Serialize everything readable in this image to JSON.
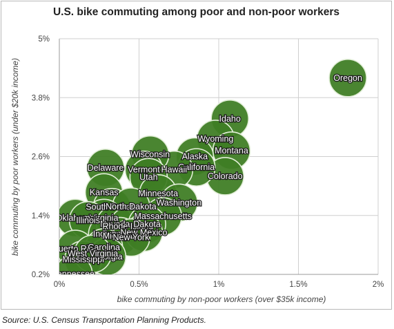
{
  "chart_data": {
    "type": "scatter",
    "title": "U.S. bike commuting among poor and non-poor workers",
    "xlabel": "bike commuting by non-poor workers (over $35k income)",
    "ylabel": "bike commuting by poor workers (under $20k income)",
    "xlim": [
      0,
      2
    ],
    "ylim": [
      0.2,
      5
    ],
    "xticks": [
      {
        "value": 0,
        "label": "0%"
      },
      {
        "value": 0.5,
        "label": "0.5%"
      },
      {
        "value": 1,
        "label": "1%"
      },
      {
        "value": 1.5,
        "label": "1.5%"
      },
      {
        "value": 2,
        "label": "2%"
      }
    ],
    "yticks": [
      {
        "value": 0.2,
        "label": "0.2%"
      },
      {
        "value": 1.4,
        "label": "1.4%"
      },
      {
        "value": 2.6,
        "label": "2.6%"
      },
      {
        "value": 3.8,
        "label": "3.8%"
      },
      {
        "value": 5,
        "label": "5%"
      }
    ],
    "grid": true,
    "marker_color": "#3f7d24",
    "points": [
      {
        "label": "Oregon",
        "x": 1.81,
        "y": 4.2
      },
      {
        "label": "Idaho",
        "x": 1.07,
        "y": 3.37
      },
      {
        "label": "Wyoming",
        "x": 0.98,
        "y": 2.96
      },
      {
        "label": "Montana",
        "x": 1.08,
        "y": 2.72
      },
      {
        "label": "Colorado",
        "x": 1.04,
        "y": 2.2
      },
      {
        "label": "Alaska",
        "x": 0.85,
        "y": 2.6
      },
      {
        "label": "California",
        "x": 0.86,
        "y": 2.38
      },
      {
        "label": "Hawaii",
        "x": 0.72,
        "y": 2.33
      },
      {
        "label": "Wisconsin",
        "x": 0.57,
        "y": 2.64
      },
      {
        "label": "Vermont",
        "x": 0.53,
        "y": 2.33
      },
      {
        "label": "Utah",
        "x": 0.56,
        "y": 2.18
      },
      {
        "label": "Minnesota",
        "x": 0.62,
        "y": 1.85
      },
      {
        "label": "Washington",
        "x": 0.75,
        "y": 1.66
      },
      {
        "label": "Massachusetts",
        "x": 0.65,
        "y": 1.38
      },
      {
        "label": "Delaware",
        "x": 0.29,
        "y": 2.37
      },
      {
        "label": "Kansas",
        "x": 0.28,
        "y": 1.87
      },
      {
        "label": "South Dakota",
        "x": 0.33,
        "y": 1.57
      },
      {
        "label": "North Dakota",
        "x": 0.45,
        "y": 1.58
      },
      {
        "label": "Virginia",
        "x": 0.28,
        "y": 1.35
      },
      {
        "label": "Oklahoma",
        "x": 0.1,
        "y": 1.35
      },
      {
        "label": "Illinois",
        "x": 0.18,
        "y": 1.3
      },
      {
        "label": "Nevada",
        "x": 0.35,
        "y": 1.22
      },
      {
        "label": "Rhode Island",
        "x": 0.43,
        "y": 1.18
      },
      {
        "label": "Dakota",
        "x": 0.55,
        "y": 1.22
      },
      {
        "label": "Indiana",
        "x": 0.3,
        "y": 1.02
      },
      {
        "label": "Michigan",
        "x": 0.38,
        "y": 0.98
      },
      {
        "label": "New Mexico",
        "x": 0.53,
        "y": 1.05
      },
      {
        "label": "New York",
        "x": 0.45,
        "y": 0.95
      },
      {
        "label": "Puerto Rico",
        "x": 0.1,
        "y": 0.72
      },
      {
        "label": "Carolina",
        "x": 0.28,
        "y": 0.75
      },
      {
        "label": "Georgia",
        "x": 0.3,
        "y": 0.56
      },
      {
        "label": "Mississippi",
        "x": 0.15,
        "y": 0.5
      },
      {
        "label": "West Virginia",
        "x": 0.21,
        "y": 0.62
      },
      {
        "label": "Tennessee",
        "x": 0.09,
        "y": 0.21
      }
    ]
  },
  "source": "Source: U.S. Census Transportation Planning Products."
}
